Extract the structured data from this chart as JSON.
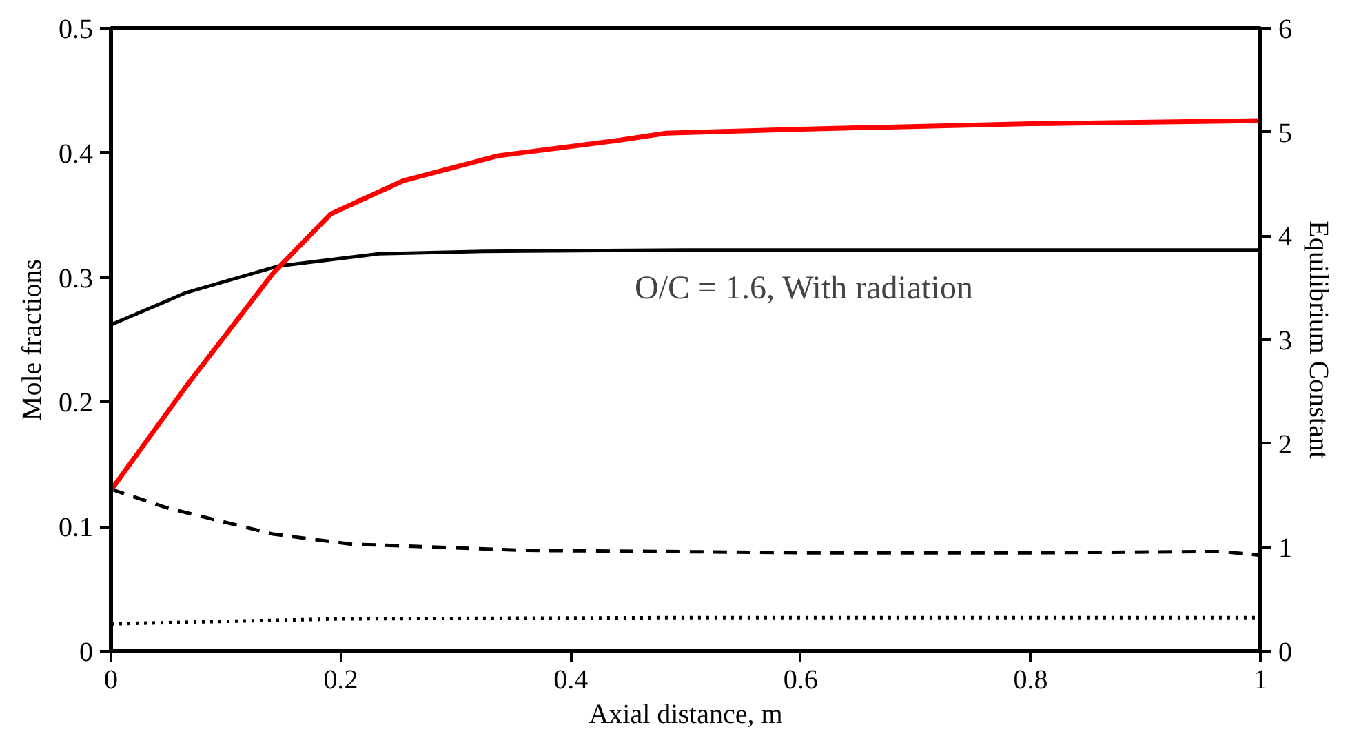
{
  "chart_data": {
    "type": "line",
    "xlabel": "Axial distance, m",
    "ylabel": "Mole fractions",
    "y2label": "Equilibrium Constant",
    "xlim": [
      0,
      1
    ],
    "xticks": [
      0,
      0.2,
      0.4,
      0.6,
      0.8,
      1
    ],
    "ylim": [
      0,
      0.5
    ],
    "yticks": [
      0,
      0.1,
      0.2,
      0.3,
      0.4,
      0.5
    ],
    "y2lim": [
      0,
      6
    ],
    "y2ticks": [
      0,
      1,
      2,
      3,
      4,
      5,
      6
    ],
    "grid": false,
    "annotations": [
      "O/C = 1.6, With radiation"
    ],
    "series": [
      {
        "color": "#000000",
        "line_style": "solid",
        "x": [
          0,
          0.066,
          0.145,
          0.233,
          0.324,
          0.5,
          0.75,
          1
        ],
        "values": [
          0.262,
          0.288,
          0.309,
          0.319,
          0.321,
          0.322,
          0.322,
          0.322
        ]
      },
      {
        "color": "#000000",
        "line_style": "dashed",
        "x": [
          0,
          0.049,
          0.141,
          0.208,
          0.358,
          0.607,
          0.8,
          0.966,
          1
        ],
        "values": [
          0.13,
          0.115,
          0.094,
          0.086,
          0.081,
          0.079,
          0.079,
          0.08,
          0.077
        ]
      },
      {
        "color": "#000000",
        "line_style": "dotted",
        "x": [
          0,
          0.2,
          0.5,
          1
        ],
        "values": [
          0.022,
          0.026,
          0.027,
          0.027
        ]
      },
      {
        "color": "#ff0000",
        "line_style": "solid",
        "axis": "y2",
        "x": [
          0,
          0.066,
          0.141,
          0.191,
          0.254,
          0.336,
          0.441,
          0.483,
          0.607,
          0.8,
          1
        ],
        "values": [
          1.55,
          2.56,
          3.64,
          4.21,
          4.53,
          4.77,
          4.92,
          4.99,
          5.03,
          5.08,
          5.11
        ]
      }
    ]
  }
}
